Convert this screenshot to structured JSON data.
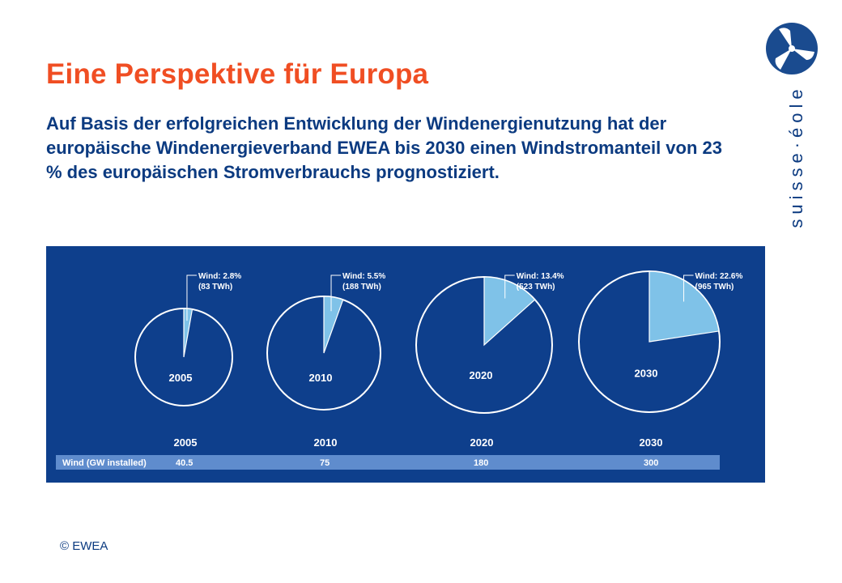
{
  "page": {
    "title": "Eine Perspektive für Europa",
    "intro": "Auf Basis der erfolgreichen Entwicklung der Windenergienutzung hat der europäische Windenergieverband EWEA bis 2030 einen Windstromanteil von 23 % des europäischen Stromverbrauchs prognostiziert.",
    "copyright": "© EWEA"
  },
  "brand": {
    "name": "suisse·éole",
    "icon": "wind-turbine-icon",
    "color": "#1a4b8f"
  },
  "colors": {
    "title": "#f04e23",
    "text": "#0b3a80",
    "chart_background": "#0e3f8c",
    "wind_slice": "#7fc2e8",
    "table_bar": "#5f8ccd"
  },
  "chart_data": {
    "type": "pie",
    "years": [
      "2005",
      "2010",
      "2020",
      "2030"
    ],
    "pies": [
      {
        "year": "2005",
        "wind_share_percent": 2.8,
        "label_line1": "Wind: 2.8%",
        "label_line2": "(83 TWh)"
      },
      {
        "year": "2010",
        "wind_share_percent": 5.5,
        "label_line1": "Wind: 5.5%",
        "label_line2": "(188 TWh)"
      },
      {
        "year": "2020",
        "wind_share_percent": 13.4,
        "label_line1": "Wind: 13.4%",
        "label_line2": "(523 TWh)"
      },
      {
        "year": "2030",
        "wind_share_percent": 22.6,
        "label_line1": "Wind: 22.6%",
        "label_line2": "(965 TWh)"
      }
    ],
    "table": {
      "row_label": "Wind (GW installed)",
      "values": [
        "40.5",
        "75",
        "180",
        "300"
      ]
    }
  }
}
